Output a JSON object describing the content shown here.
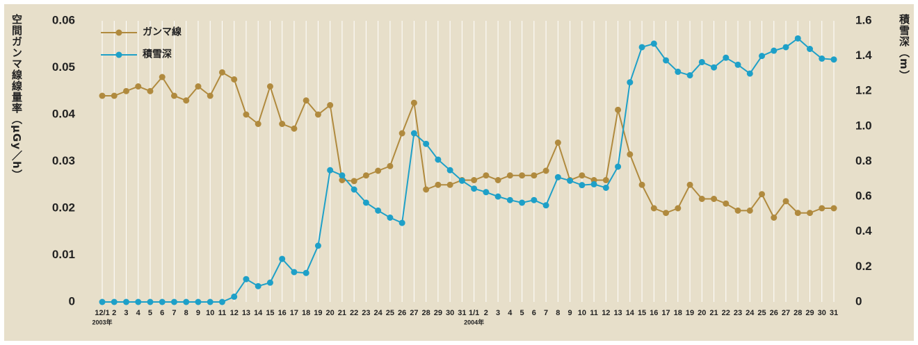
{
  "chart_data": {
    "type": "line",
    "y_label": "空間ガンマ線線量率（μGy／h）",
    "y2_label": "積雪深（m）",
    "categories": [
      "12/1",
      "2",
      "3",
      "4",
      "5",
      "6",
      "7",
      "8",
      "9",
      "10",
      "11",
      "12",
      "13",
      "14",
      "15",
      "16",
      "17",
      "18",
      "19",
      "20",
      "21",
      "22",
      "23",
      "24",
      "25",
      "26",
      "27",
      "28",
      "29",
      "30",
      "31",
      "1/1",
      "2",
      "3",
      "4",
      "5",
      "6",
      "7",
      "8",
      "9",
      "10",
      "11",
      "12",
      "13",
      "14",
      "15",
      "16",
      "17",
      "18",
      "19",
      "20",
      "21",
      "22",
      "23",
      "24",
      "25",
      "26",
      "27",
      "28",
      "29",
      "30",
      "31"
    ],
    "annotations": [
      {
        "text": "2003年",
        "category": 0
      },
      {
        "text": "2004年",
        "category": 31
      }
    ],
    "series": [
      {
        "name": "ガンマ線",
        "color": "#b08a3e",
        "values": [
          0.044,
          0.044,
          0.045,
          0.046,
          0.045,
          0.048,
          0.044,
          0.043,
          0.046,
          0.044,
          0.049,
          0.0475,
          0.04,
          0.038,
          0.046,
          0.038,
          0.037,
          0.043,
          0.04,
          0.042,
          0.026,
          0.0258,
          0.027,
          0.028,
          0.029,
          0.036,
          0.0425,
          0.024,
          0.025,
          0.025,
          0.026,
          0.026,
          0.027,
          0.026,
          0.027,
          0.027,
          0.027,
          0.028,
          0.034,
          0.026,
          0.027,
          0.026,
          0.026,
          0.041,
          0.0315,
          0.025,
          0.02,
          0.019,
          0.02,
          0.025,
          0.022,
          0.022,
          0.021,
          0.0195,
          0.0195,
          0.023,
          0.018,
          0.0215,
          0.019,
          0.019,
          0.02,
          0.02
        ]
      },
      {
        "name": "積雪深",
        "color": "#1ea0c8",
        "axis": "y2",
        "values": [
          0,
          0,
          0,
          0,
          0,
          0,
          0,
          0,
          0,
          0,
          0,
          0.03,
          0.13,
          0.09,
          0.11,
          0.245,
          0.17,
          0.165,
          0.32,
          0.75,
          0.72,
          0.64,
          0.565,
          0.52,
          0.48,
          0.45,
          0.96,
          0.9,
          0.81,
          0.75,
          0.69,
          0.645,
          0.625,
          0.6,
          0.58,
          0.565,
          0.58,
          0.55,
          0.71,
          0.69,
          0.665,
          0.67,
          0.65,
          0.77,
          1.25,
          1.45,
          1.47,
          1.375,
          1.31,
          1.29,
          1.365,
          1.335,
          1.39,
          1.35,
          1.3,
          1.4,
          1.43,
          1.45,
          1.5,
          1.44,
          1.385,
          1.38
        ]
      }
    ],
    "ylim": [
      0,
      0.06
    ],
    "yticks": [
      0,
      0.01,
      0.02,
      0.03,
      0.04,
      0.05,
      0.06
    ],
    "y2lim": [
      0,
      1.6
    ],
    "y2ticks": [
      0,
      0.2,
      0.4,
      0.6,
      0.8,
      {
        "value": 1,
        "label": "1.0"
      },
      1.2,
      1.4,
      1.6
    ],
    "grid": "x",
    "legend": "upper left"
  }
}
